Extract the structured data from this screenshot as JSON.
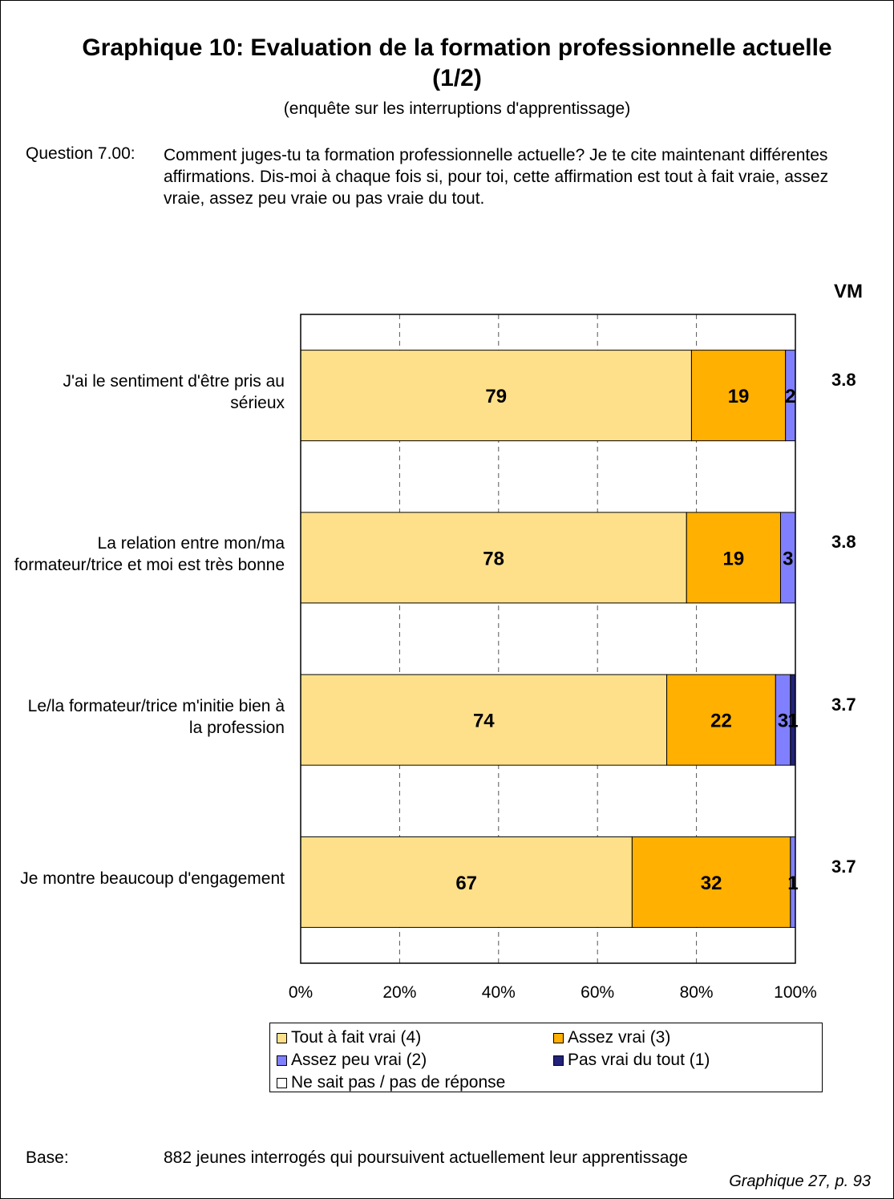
{
  "header": {
    "title_line1": "Graphique 10: Evaluation de la formation professionnelle actuelle",
    "title_line2": "(1/2)",
    "subtitle": "(enquête sur les interruptions d'apprentissage)"
  },
  "question": {
    "label": "Question 7.00:",
    "text": "Comment juges-tu ta formation professionnelle actuelle? Je te cite maintenant différentes affirmations. Dis-moi à chaque fois si, pour toi, cette affirmation est tout à fait vraie, assez vraie, assez peu vraie ou pas vraie du tout."
  },
  "vm_header": "VM",
  "chart_data": {
    "type": "bar",
    "orientation": "horizontal",
    "stacked": true,
    "xlim": [
      0,
      100
    ],
    "x_ticks": [
      "0%",
      "20%",
      "40%",
      "60%",
      "80%",
      "100%"
    ],
    "grid": "vertical dashed",
    "legend_position": "bottom",
    "categories": [
      "J'ai le sentiment d'être pris au sérieux",
      "La relation entre mon/ma formateur/trice et moi est très bonne",
      "Le/la formateur/trice m'initie bien à la profession",
      "Je montre beaucoup d'engagement"
    ],
    "series": [
      {
        "name": "Tout à fait vrai (4)",
        "color": "#FFE08A",
        "values": [
          79,
          78,
          74,
          67
        ],
        "labels": [
          "79",
          "78",
          "74",
          "67"
        ]
      },
      {
        "name": "Assez vrai (3)",
        "color": "#FFB000",
        "values": [
          19,
          19,
          22,
          32
        ],
        "labels": [
          "19",
          "19",
          "22",
          "32"
        ]
      },
      {
        "name": "Assez peu vrai (2)",
        "color": "#8080FF",
        "values": [
          2,
          3,
          3,
          1
        ],
        "labels": [
          "2",
          "3",
          "3",
          "1"
        ]
      },
      {
        "name": "Pas vrai du tout (1)",
        "color": "#22227A",
        "values": [
          0,
          0,
          1,
          0
        ],
        "labels": [
          "",
          "",
          "1",
          ""
        ]
      },
      {
        "name": "Ne sait pas / pas de réponse",
        "color": "#FFFFFF",
        "values": [
          0,
          0,
          0,
          0
        ],
        "labels": [
          "",
          "",
          "",
          ""
        ]
      }
    ],
    "vm_values": [
      "3.8",
      "3.8",
      "3.7",
      "3.7"
    ]
  },
  "footer": {
    "base_label": "Base:",
    "base_text": "882 jeunes interrogés qui poursuivent actuellement leur apprentissage",
    "source": "Graphique 27, p. 93"
  }
}
